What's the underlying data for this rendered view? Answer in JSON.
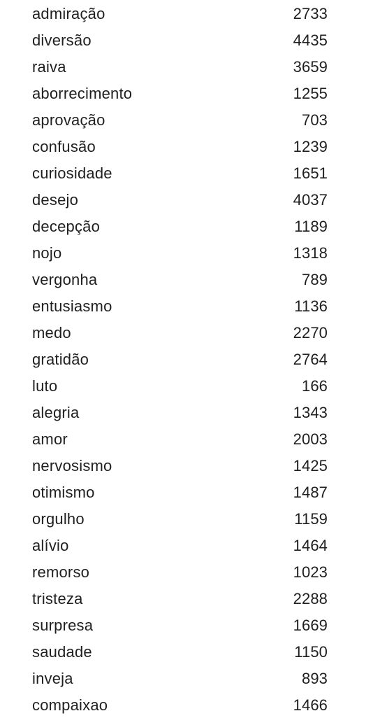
{
  "rows": [
    {
      "label": "admiração",
      "count": "2733"
    },
    {
      "label": "diversão",
      "count": "4435"
    },
    {
      "label": "raiva",
      "count": "3659"
    },
    {
      "label": "aborrecimento",
      "count": "1255"
    },
    {
      "label": "aprovação",
      "count": "703"
    },
    {
      "label": "confusão",
      "count": "1239"
    },
    {
      "label": "curiosidade",
      "count": "1651"
    },
    {
      "label": "desejo",
      "count": "4037"
    },
    {
      "label": "decepção",
      "count": "1189"
    },
    {
      "label": "nojo",
      "count": "1318"
    },
    {
      "label": "vergonha",
      "count": "789"
    },
    {
      "label": "entusiasmo",
      "count": "1136"
    },
    {
      "label": "medo",
      "count": "2270"
    },
    {
      "label": "gratidão",
      "count": "2764"
    },
    {
      "label": "luto",
      "count": "166"
    },
    {
      "label": "alegria",
      "count": "1343"
    },
    {
      "label": "amor",
      "count": "2003"
    },
    {
      "label": "nervosismo",
      "count": "1425"
    },
    {
      "label": "otimismo",
      "count": "1487"
    },
    {
      "label": "orgulho",
      "count": "1159"
    },
    {
      "label": "alívio",
      "count": "1464"
    },
    {
      "label": "remorso",
      "count": "1023"
    },
    {
      "label": "tristeza",
      "count": "2288"
    },
    {
      "label": "surpresa",
      "count": "1669"
    },
    {
      "label": "saudade",
      "count": "1150"
    },
    {
      "label": "inveja",
      "count": "893"
    },
    {
      "label": "compaixao",
      "count": "1466"
    }
  ]
}
